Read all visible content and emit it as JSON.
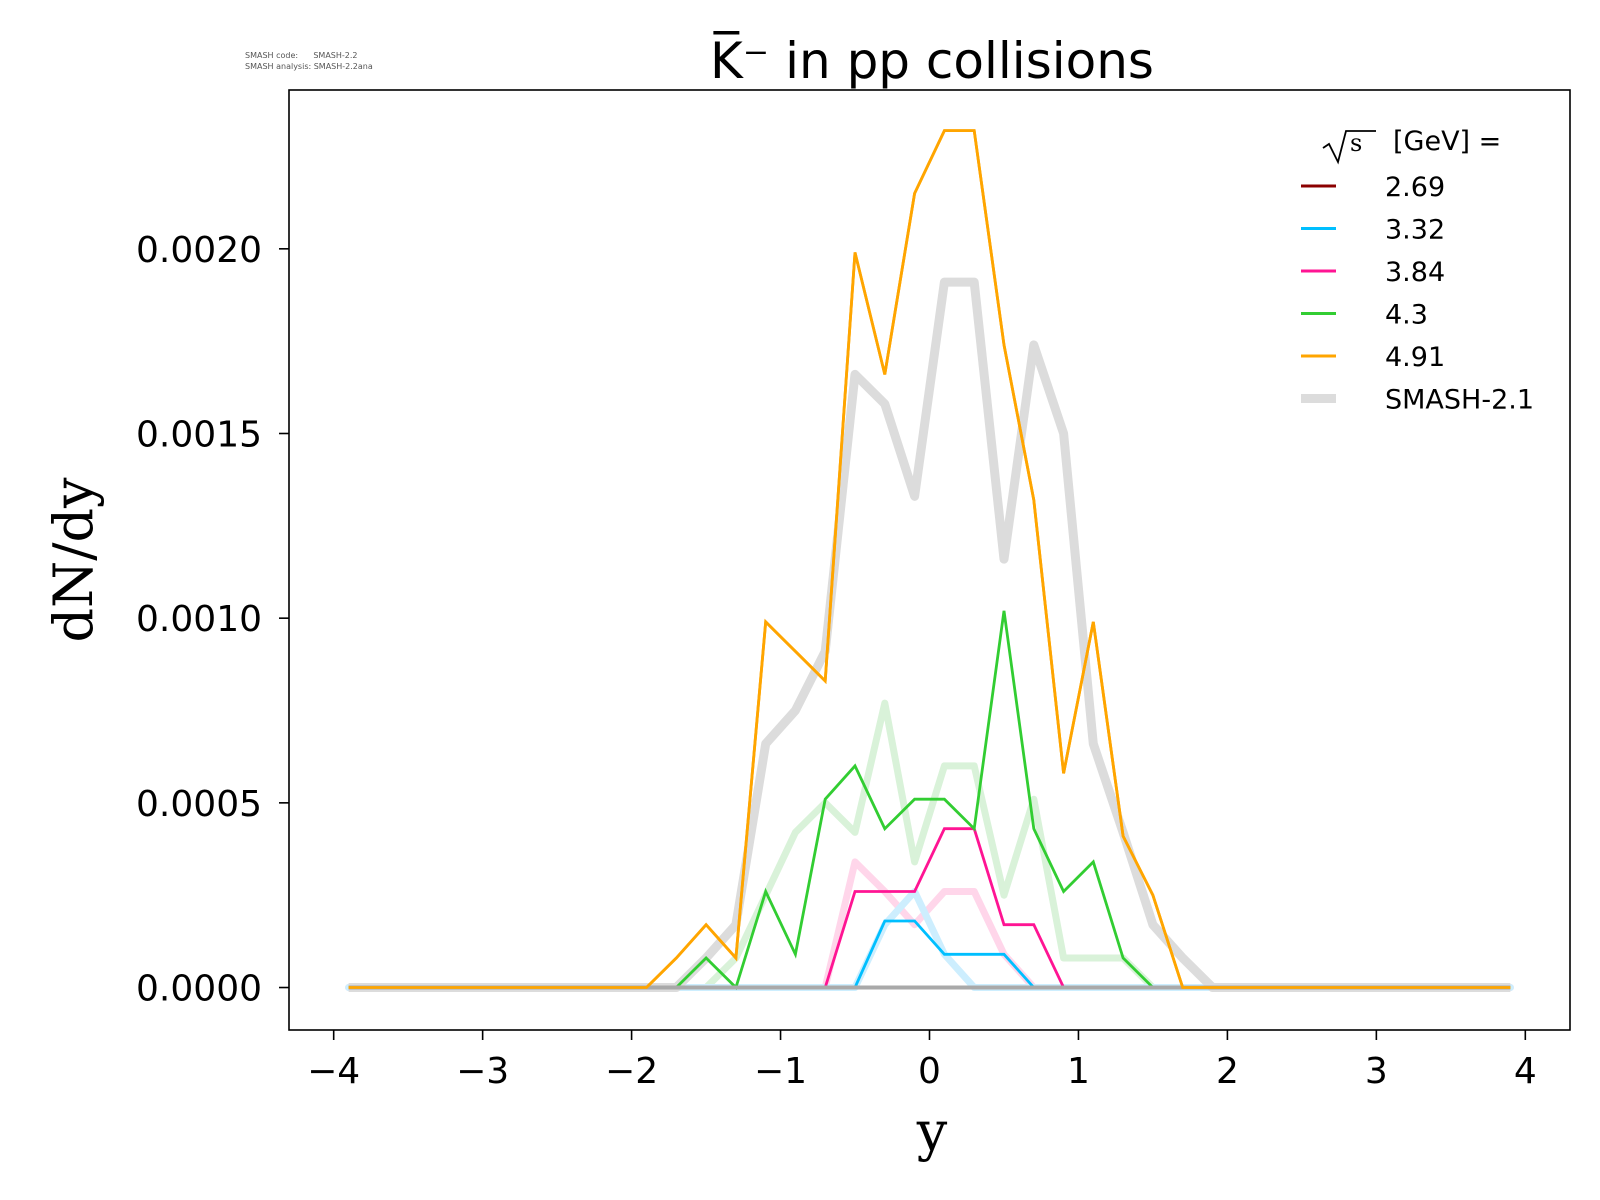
{
  "meta": {
    "code_label": "SMASH code:      SMASH-2.2",
    "analysis_label": "SMASH analysis: SMASH-2.2ana"
  },
  "chart_data": {
    "type": "line",
    "title": "K̅⁻ in pp collisions",
    "xlabel": "y",
    "ylabel": "dN/dy",
    "xlim": [
      -4.3,
      4.3
    ],
    "ylim": [
      -0.000115,
      0.00243
    ],
    "xticks": [
      -4,
      -3,
      -2,
      -1,
      0,
      1,
      2,
      3,
      4
    ],
    "xtick_labels": [
      "−4",
      "−3",
      "−2",
      "−1",
      "0",
      "1",
      "2",
      "3",
      "4"
    ],
    "yticks": [
      0.0,
      0.0005,
      0.001,
      0.0015,
      0.002
    ],
    "ytick_labels": [
      "0.0000",
      "0.0005",
      "0.0010",
      "0.0015",
      "0.0020"
    ],
    "grid": false,
    "legend": {
      "placement": "top-right",
      "title_suffix": "[GeV] ="
    },
    "x": [
      -3.9,
      -3.7,
      -3.5,
      -3.3,
      -3.1,
      -2.9,
      -2.7,
      -2.5,
      -2.3,
      -2.1,
      -1.9,
      -1.7,
      -1.5,
      -1.3,
      -1.1,
      -0.9,
      -0.7,
      -0.5,
      -0.3,
      -0.1,
      0.1,
      0.3,
      0.5,
      0.7,
      0.9,
      1.1,
      1.3,
      1.5,
      1.7,
      1.9,
      2.1,
      2.3,
      2.5,
      2.7,
      2.9,
      3.1,
      3.3,
      3.5,
      3.7,
      3.9
    ],
    "series": [
      {
        "name": "2.69",
        "color": "#8b0000",
        "values": [
          0,
          0,
          0,
          0,
          0,
          0,
          0,
          0,
          0,
          0,
          0,
          0,
          0,
          0,
          0,
          0,
          0,
          0,
          0,
          0,
          0,
          0,
          0,
          0,
          0,
          0,
          0,
          0,
          0,
          0,
          0,
          0,
          0,
          0,
          0,
          0,
          0,
          0,
          0,
          0
        ]
      },
      {
        "name": "3.32",
        "color": "#00bfff",
        "values": [
          0,
          0,
          0,
          0,
          0,
          0,
          0,
          0,
          0,
          0,
          0,
          0,
          0,
          0,
          0,
          0,
          0,
          0,
          0.00018,
          0.00018,
          9e-05,
          9e-05,
          9e-05,
          0,
          0,
          0,
          0,
          0,
          0,
          0,
          0,
          0,
          0,
          0,
          0,
          0,
          0,
          0,
          0,
          0
        ]
      },
      {
        "name": "3.84",
        "color": "#ff1493",
        "values": [
          0,
          0,
          0,
          0,
          0,
          0,
          0,
          0,
          0,
          0,
          0,
          0,
          0,
          0,
          0,
          0,
          0,
          0.00026,
          0.00026,
          0.00026,
          0.00043,
          0.00043,
          0.00017,
          0.00017,
          0,
          0,
          0,
          0,
          0,
          0,
          0,
          0,
          0,
          0,
          0,
          0,
          0,
          0,
          0,
          0
        ]
      },
      {
        "name": "4.3",
        "color": "#32cd32",
        "values": [
          0,
          0,
          0,
          0,
          0,
          0,
          0,
          0,
          0,
          0,
          0,
          0,
          8e-05,
          0,
          0.00026,
          9e-05,
          0.00051,
          0.0006,
          0.00043,
          0.00051,
          0.00051,
          0.00043,
          0.00102,
          0.00043,
          0.00026,
          0.00034,
          8e-05,
          0,
          0,
          0,
          0,
          0,
          0,
          0,
          0,
          0,
          0,
          0,
          0,
          0
        ]
      },
      {
        "name": "4.91",
        "color": "#ffa500",
        "values": [
          0,
          0,
          0,
          0,
          0,
          0,
          0,
          0,
          0,
          0,
          0,
          8e-05,
          0.00017,
          8e-05,
          0.00099,
          0.00091,
          0.00083,
          0.00199,
          0.00166,
          0.00215,
          0.00232,
          0.00232,
          0.00174,
          0.00132,
          0.00058,
          0.00099,
          0.00041,
          0.00025,
          0,
          0,
          0,
          0,
          0,
          0,
          0,
          0,
          0,
          0,
          0,
          0
        ]
      },
      {
        "name": "SMASH-2.1",
        "color": "#dcdcdc",
        "width": "thick",
        "style": "reference",
        "values": [
          0,
          0,
          0,
          0,
          0,
          0,
          0,
          0,
          0,
          0,
          0,
          0,
          8e-05,
          0.00017,
          0.00066,
          0.00075,
          0.00091,
          0.00166,
          0.00158,
          0.00133,
          0.00191,
          0.00191,
          0.00116,
          0.00174,
          0.0015,
          0.00066,
          0.00042,
          0.00017,
          8e-05,
          0,
          0,
          0,
          0,
          0,
          0,
          0,
          0,
          0,
          0,
          0
        ]
      }
    ],
    "reference_curves": [
      {
        "color": "#d9f2d9",
        "matches": "4.3",
        "values": [
          0,
          0,
          0,
          0,
          0,
          0,
          0,
          0,
          0,
          0,
          0,
          0,
          0,
          8e-05,
          0.00025,
          0.00042,
          0.0005,
          0.00042,
          0.00077,
          0.00034,
          0.0006,
          0.0006,
          0.00025,
          0.00051,
          8e-05,
          8e-05,
          8e-05,
          0,
          0,
          0,
          0,
          0,
          0,
          0,
          0,
          0,
          0,
          0,
          0,
          0
        ]
      },
      {
        "color": "#ffd6ea",
        "matches": "3.84",
        "values": [
          0,
          0,
          0,
          0,
          0,
          0,
          0,
          0,
          0,
          0,
          0,
          0,
          0,
          0,
          0,
          0,
          0,
          0.00034,
          0.00026,
          0.00017,
          0.00026,
          0.00026,
          9e-05,
          0,
          0,
          0,
          0,
          0,
          0,
          0,
          0,
          0,
          0,
          0,
          0,
          0,
          0,
          0,
          0,
          0
        ]
      },
      {
        "color": "#cdeefe",
        "matches": "3.32",
        "values": [
          0,
          0,
          0,
          0,
          0,
          0,
          0,
          0,
          0,
          0,
          0,
          0,
          0,
          0,
          0,
          0,
          0,
          0,
          0.00017,
          0.00026,
          9e-05,
          0,
          0,
          0,
          0,
          0,
          0,
          0,
          0,
          0,
          0,
          0,
          0,
          0,
          0,
          0,
          0,
          0,
          0,
          0
        ]
      }
    ]
  }
}
